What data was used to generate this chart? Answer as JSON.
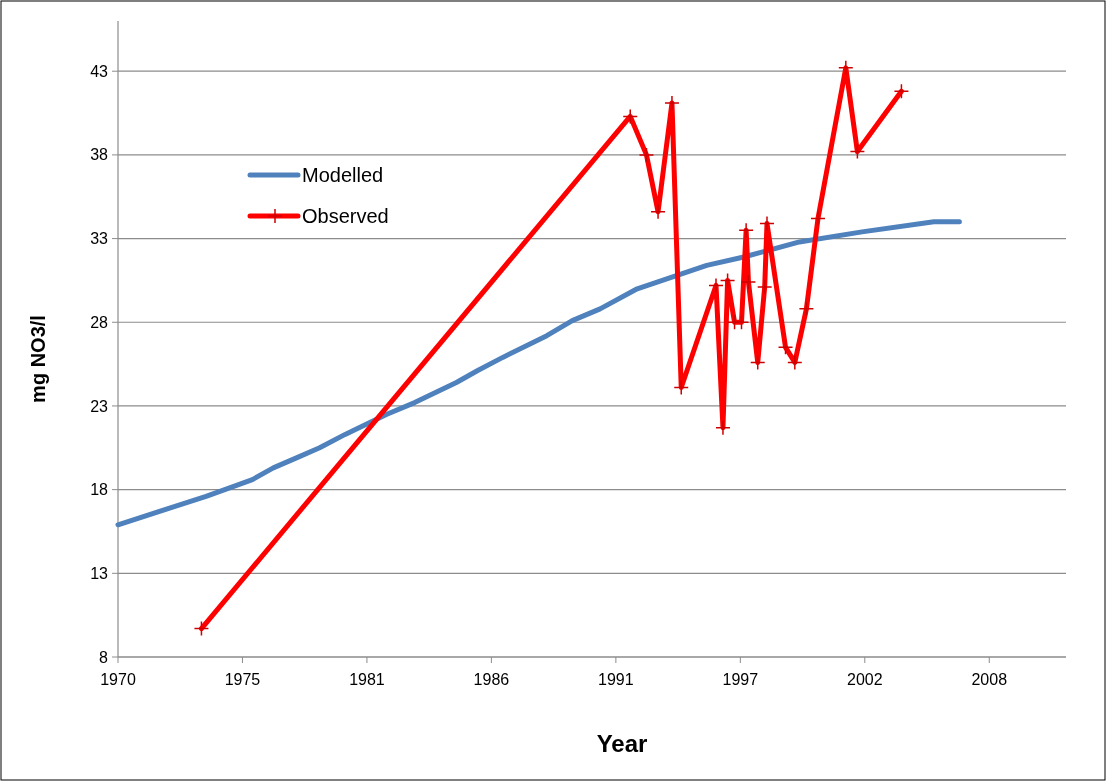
{
  "chart_data": {
    "type": "line",
    "xlabel": "Year",
    "ylabel": "mg NO3/l",
    "xlim": [
      1970,
      2010.9
    ],
    "ylim": [
      8,
      46
    ],
    "xticks": [
      {
        "value": 1970,
        "label": "1970"
      },
      {
        "value": 1975.37,
        "label": "1975"
      },
      {
        "value": 1980.74,
        "label": "1981"
      },
      {
        "value": 1986.11,
        "label": "1986"
      },
      {
        "value": 1991.48,
        "label": "1991"
      },
      {
        "value": 1996.85,
        "label": "1997"
      },
      {
        "value": 2002.22,
        "label": "2002"
      },
      {
        "value": 2007.59,
        "label": "2008"
      }
    ],
    "yticks": [
      8,
      13,
      18,
      23,
      28,
      33,
      38,
      43
    ],
    "grid": "y",
    "legend": "top left",
    "series": [
      {
        "name": "Modelled",
        "color": "#4f81bd",
        "marker": "none",
        "x": [
          1970,
          1973.8,
          1975.8,
          1976.7,
          1977.7,
          1978.7,
          1979.8,
          1981.6,
          1982.8,
          1984.6,
          1985.5,
          1986.6,
          1988.5,
          1989.6,
          1990.8,
          1992.4,
          1995.4,
          1997.0,
          1999.4,
          2002.1,
          2005.2,
          2006.3
        ],
        "values": [
          15.9,
          17.6,
          18.6,
          19.3,
          19.9,
          20.5,
          21.3,
          22.5,
          23.2,
          24.4,
          25.1,
          25.9,
          27.2,
          28.1,
          28.8,
          30.0,
          31.4,
          31.9,
          32.8,
          33.4,
          34.0,
          34.0
        ]
      },
      {
        "name": "Observed",
        "color": "#ff0000",
        "marker": "cross",
        "x": [
          1973.6,
          1992.1,
          1992.8,
          1993.3,
          1993.9,
          1994.3,
          1995.8,
          1996.1,
          1996.3,
          1996.6,
          1996.9,
          1997.1,
          1997.2,
          1997.6,
          1997.9,
          1998.0,
          1998.8,
          1999.2,
          1999.7,
          2000.2,
          2001.4,
          2001.9,
          2003.8
        ],
        "values": [
          9.7,
          40.3,
          38.0,
          34.6,
          41.1,
          24.1,
          30.2,
          21.7,
          30.5,
          28.0,
          28.0,
          33.5,
          30.4,
          25.6,
          30.1,
          33.9,
          26.5,
          25.6,
          28.8,
          34.2,
          43.2,
          38.2,
          41.8
        ]
      }
    ]
  }
}
